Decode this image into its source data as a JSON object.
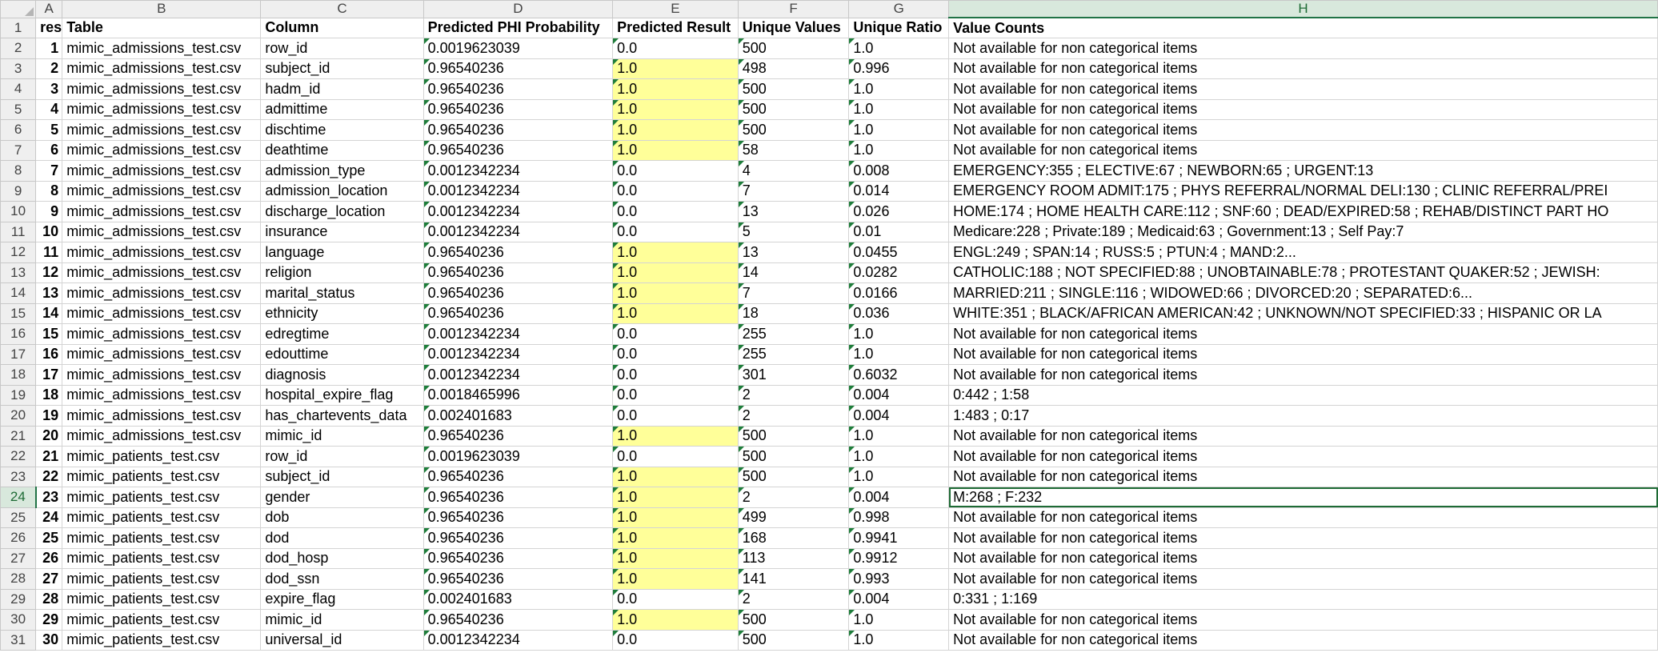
{
  "columns": [
    "A",
    "B",
    "C",
    "D",
    "E",
    "F",
    "G",
    "H"
  ],
  "selected_column": "H",
  "selected_row": 24,
  "header_row": {
    "A": "res",
    "B": "Table",
    "C": "Column",
    "D": "Predicted PHI Probability",
    "E": "Predicted Result",
    "F": "Unique Values",
    "G": "Unique Ratio",
    "H": "Value Counts"
  },
  "highlight_color": "#ffff99",
  "rows": [
    {
      "r": 2,
      "a": "1",
      "b": "mimic_admissions_test.csv",
      "c": "row_id",
      "d": "0.0019623039",
      "e": "0.0",
      "f": "500",
      "g": "1.0",
      "h": "Not available for non categorical items"
    },
    {
      "r": 3,
      "a": "2",
      "b": "mimic_admissions_test.csv",
      "c": "subject_id",
      "d": "0.96540236",
      "e": "1.0",
      "f": "498",
      "g": "0.996",
      "h": "Not available for non categorical items"
    },
    {
      "r": 4,
      "a": "3",
      "b": "mimic_admissions_test.csv",
      "c": "hadm_id",
      "d": "0.96540236",
      "e": "1.0",
      "f": "500",
      "g": "1.0",
      "h": "Not available for non categorical items"
    },
    {
      "r": 5,
      "a": "4",
      "b": "mimic_admissions_test.csv",
      "c": "admittime",
      "d": "0.96540236",
      "e": "1.0",
      "f": "500",
      "g": "1.0",
      "h": "Not available for non categorical items"
    },
    {
      "r": 6,
      "a": "5",
      "b": "mimic_admissions_test.csv",
      "c": "dischtime",
      "d": "0.96540236",
      "e": "1.0",
      "f": "500",
      "g": "1.0",
      "h": "Not available for non categorical items"
    },
    {
      "r": 7,
      "a": "6",
      "b": "mimic_admissions_test.csv",
      "c": "deathtime",
      "d": "0.96540236",
      "e": "1.0",
      "f": "58",
      "g": "1.0",
      "h": "Not available for non categorical items"
    },
    {
      "r": 8,
      "a": "7",
      "b": "mimic_admissions_test.csv",
      "c": "admission_type",
      "d": "0.0012342234",
      "e": "0.0",
      "f": "4",
      "g": "0.008",
      "h": "EMERGENCY:355 ; ELECTIVE:67 ; NEWBORN:65 ; URGENT:13"
    },
    {
      "r": 9,
      "a": "8",
      "b": "mimic_admissions_test.csv",
      "c": "admission_location",
      "d": "0.0012342234",
      "e": "0.0",
      "f": "7",
      "g": "0.014",
      "h": "EMERGENCY ROOM ADMIT:175 ; PHYS REFERRAL/NORMAL DELI:130 ; CLINIC REFERRAL/PREI"
    },
    {
      "r": 10,
      "a": "9",
      "b": "mimic_admissions_test.csv",
      "c": "discharge_location",
      "d": "0.0012342234",
      "e": "0.0",
      "f": "13",
      "g": "0.026",
      "h": "HOME:174 ; HOME HEALTH CARE:112 ; SNF:60 ; DEAD/EXPIRED:58 ; REHAB/DISTINCT PART HO"
    },
    {
      "r": 11,
      "a": "10",
      "b": "mimic_admissions_test.csv",
      "c": "insurance",
      "d": "0.0012342234",
      "e": "0.0",
      "f": "5",
      "g": "0.01",
      "h": "Medicare:228 ; Private:189 ; Medicaid:63 ; Government:13 ; Self Pay:7"
    },
    {
      "r": 12,
      "a": "11",
      "b": "mimic_admissions_test.csv",
      "c": "language",
      "d": "0.96540236",
      "e": "1.0",
      "f": "13",
      "g": "0.0455",
      "h": "ENGL:249 ; SPAN:14 ; RUSS:5 ; PTUN:4 ; MAND:2..."
    },
    {
      "r": 13,
      "a": "12",
      "b": "mimic_admissions_test.csv",
      "c": "religion",
      "d": "0.96540236",
      "e": "1.0",
      "f": "14",
      "g": "0.0282",
      "h": "CATHOLIC:188 ; NOT SPECIFIED:88 ; UNOBTAINABLE:78 ; PROTESTANT QUAKER:52 ; JEWISH:"
    },
    {
      "r": 14,
      "a": "13",
      "b": "mimic_admissions_test.csv",
      "c": "marital_status",
      "d": "0.96540236",
      "e": "1.0",
      "f": "7",
      "g": "0.0166",
      "h": "MARRIED:211 ; SINGLE:116 ; WIDOWED:66 ; DIVORCED:20 ; SEPARATED:6..."
    },
    {
      "r": 15,
      "a": "14",
      "b": "mimic_admissions_test.csv",
      "c": "ethnicity",
      "d": "0.96540236",
      "e": "1.0",
      "f": "18",
      "g": "0.036",
      "h": "WHITE:351 ; BLACK/AFRICAN AMERICAN:42 ; UNKNOWN/NOT SPECIFIED:33 ; HISPANIC OR LA"
    },
    {
      "r": 16,
      "a": "15",
      "b": "mimic_admissions_test.csv",
      "c": "edregtime",
      "d": "0.0012342234",
      "e": "0.0",
      "f": "255",
      "g": "1.0",
      "h": "Not available for non categorical items"
    },
    {
      "r": 17,
      "a": "16",
      "b": "mimic_admissions_test.csv",
      "c": "edouttime",
      "d": "0.0012342234",
      "e": "0.0",
      "f": "255",
      "g": "1.0",
      "h": "Not available for non categorical items"
    },
    {
      "r": 18,
      "a": "17",
      "b": "mimic_admissions_test.csv",
      "c": "diagnosis",
      "d": "0.0012342234",
      "e": "0.0",
      "f": "301",
      "g": "0.6032",
      "h": "Not available for non categorical items"
    },
    {
      "r": 19,
      "a": "18",
      "b": "mimic_admissions_test.csv",
      "c": "hospital_expire_flag",
      "d": "0.0018465996",
      "e": "0.0",
      "f": "2",
      "g": "0.004",
      "h": "0:442 ; 1:58"
    },
    {
      "r": 20,
      "a": "19",
      "b": "mimic_admissions_test.csv",
      "c": "has_chartevents_data",
      "d": "0.002401683",
      "e": "0.0",
      "f": "2",
      "g": "0.004",
      "h": "1:483 ; 0:17"
    },
    {
      "r": 21,
      "a": "20",
      "b": "mimic_admissions_test.csv",
      "c": "mimic_id",
      "d": "0.96540236",
      "e": "1.0",
      "f": "500",
      "g": "1.0",
      "h": "Not available for non categorical items"
    },
    {
      "r": 22,
      "a": "21",
      "b": "mimic_patients_test.csv",
      "c": "row_id",
      "d": "0.0019623039",
      "e": "0.0",
      "f": "500",
      "g": "1.0",
      "h": "Not available for non categorical items"
    },
    {
      "r": 23,
      "a": "22",
      "b": "mimic_patients_test.csv",
      "c": "subject_id",
      "d": "0.96540236",
      "e": "1.0",
      "f": "500",
      "g": "1.0",
      "h": "Not available for non categorical items"
    },
    {
      "r": 24,
      "a": "23",
      "b": "mimic_patients_test.csv",
      "c": "gender",
      "d": "0.96540236",
      "e": "1.0",
      "f": "2",
      "g": "0.004",
      "h": "M:268 ; F:232"
    },
    {
      "r": 25,
      "a": "24",
      "b": "mimic_patients_test.csv",
      "c": "dob",
      "d": "0.96540236",
      "e": "1.0",
      "f": "499",
      "g": "0.998",
      "h": "Not available for non categorical items"
    },
    {
      "r": 26,
      "a": "25",
      "b": "mimic_patients_test.csv",
      "c": "dod",
      "d": "0.96540236",
      "e": "1.0",
      "f": "168",
      "g": "0.9941",
      "h": "Not available for non categorical items"
    },
    {
      "r": 27,
      "a": "26",
      "b": "mimic_patients_test.csv",
      "c": "dod_hosp",
      "d": "0.96540236",
      "e": "1.0",
      "f": "113",
      "g": "0.9912",
      "h": "Not available for non categorical items"
    },
    {
      "r": 28,
      "a": "27",
      "b": "mimic_patients_test.csv",
      "c": "dod_ssn",
      "d": "0.96540236",
      "e": "1.0",
      "f": "141",
      "g": "0.993",
      "h": "Not available for non categorical items"
    },
    {
      "r": 29,
      "a": "28",
      "b": "mimic_patients_test.csv",
      "c": "expire_flag",
      "d": "0.002401683",
      "e": "0.0",
      "f": "2",
      "g": "0.004",
      "h": "0:331 ; 1:169"
    },
    {
      "r": 30,
      "a": "29",
      "b": "mimic_patients_test.csv",
      "c": "mimic_id",
      "d": "0.96540236",
      "e": "1.0",
      "f": "500",
      "g": "1.0",
      "h": "Not available for non categorical items"
    },
    {
      "r": 31,
      "a": "30",
      "b": "mimic_patients_test.csv",
      "c": "universal_id",
      "d": "0.0012342234",
      "e": "0.0",
      "f": "500",
      "g": "1.0",
      "h": "Not available for non categorical items"
    }
  ]
}
